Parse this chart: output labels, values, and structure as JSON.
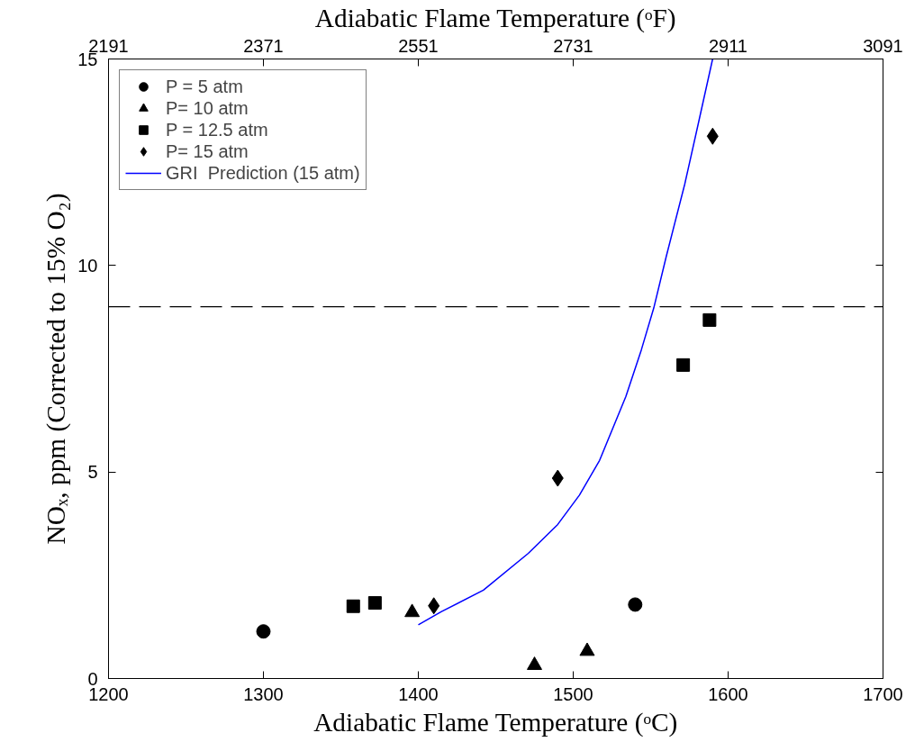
{
  "chart_data": {
    "type": "scatter",
    "xlabel": "Adiabatic Flame Temperature (ᵒC)",
    "x2label": "Adiabatic Flame Temperature (ᵒF)",
    "ylabel": "NOₓ, ppm (Corrected to 15% O₂)",
    "xlim": [
      1200,
      1700
    ],
    "xticks": [
      1200,
      1300,
      1400,
      1500,
      1600,
      1700
    ],
    "x2lim": [
      2191,
      3091
    ],
    "x2ticks": [
      2191,
      2371,
      2551,
      2731,
      2911,
      3091
    ],
    "ylim": [
      0,
      15
    ],
    "yticks": [
      0,
      5,
      10,
      15
    ],
    "grid": false,
    "legend": "top left",
    "ref_lines": [
      {
        "axis": "y",
        "value": 9,
        "color": "#000000",
        "line_style": "dashed"
      }
    ],
    "series": [
      {
        "name": "P = 5 atm",
        "marker": "circle",
        "color": "#000000",
        "x": [
          1300,
          1540
        ],
        "values": [
          1.14,
          1.79
        ]
      },
      {
        "name": "P= 10 atm",
        "marker": "triangle",
        "color": "#000000",
        "x": [
          1396,
          1475,
          1509
        ],
        "values": [
          1.6,
          0.32,
          0.66
        ]
      },
      {
        "name": "P = 12.5 atm",
        "marker": "square",
        "color": "#000000",
        "x": [
          1358,
          1372,
          1571,
          1588
        ],
        "values": [
          1.75,
          1.83,
          7.59,
          8.68
        ]
      },
      {
        "name": "P= 15 atm",
        "marker": "diamond",
        "color": "#000000",
        "x": [
          1410,
          1490,
          1590
        ],
        "values": [
          1.76,
          4.85,
          13.13
        ]
      },
      {
        "name": "GRI  Prediction (15 atm)",
        "type": "line",
        "line_style": "solid",
        "color": "#0000ff",
        "x": [
          1400,
          1415,
          1442,
          1471,
          1490,
          1504,
          1517,
          1534,
          1544,
          1552,
          1560,
          1572,
          1580,
          1590
        ],
        "values": [
          1.3,
          1.62,
          2.14,
          3.03,
          3.73,
          4.44,
          5.28,
          6.83,
          7.96,
          8.97,
          10.21,
          11.97,
          13.31,
          15.0
        ]
      }
    ]
  }
}
